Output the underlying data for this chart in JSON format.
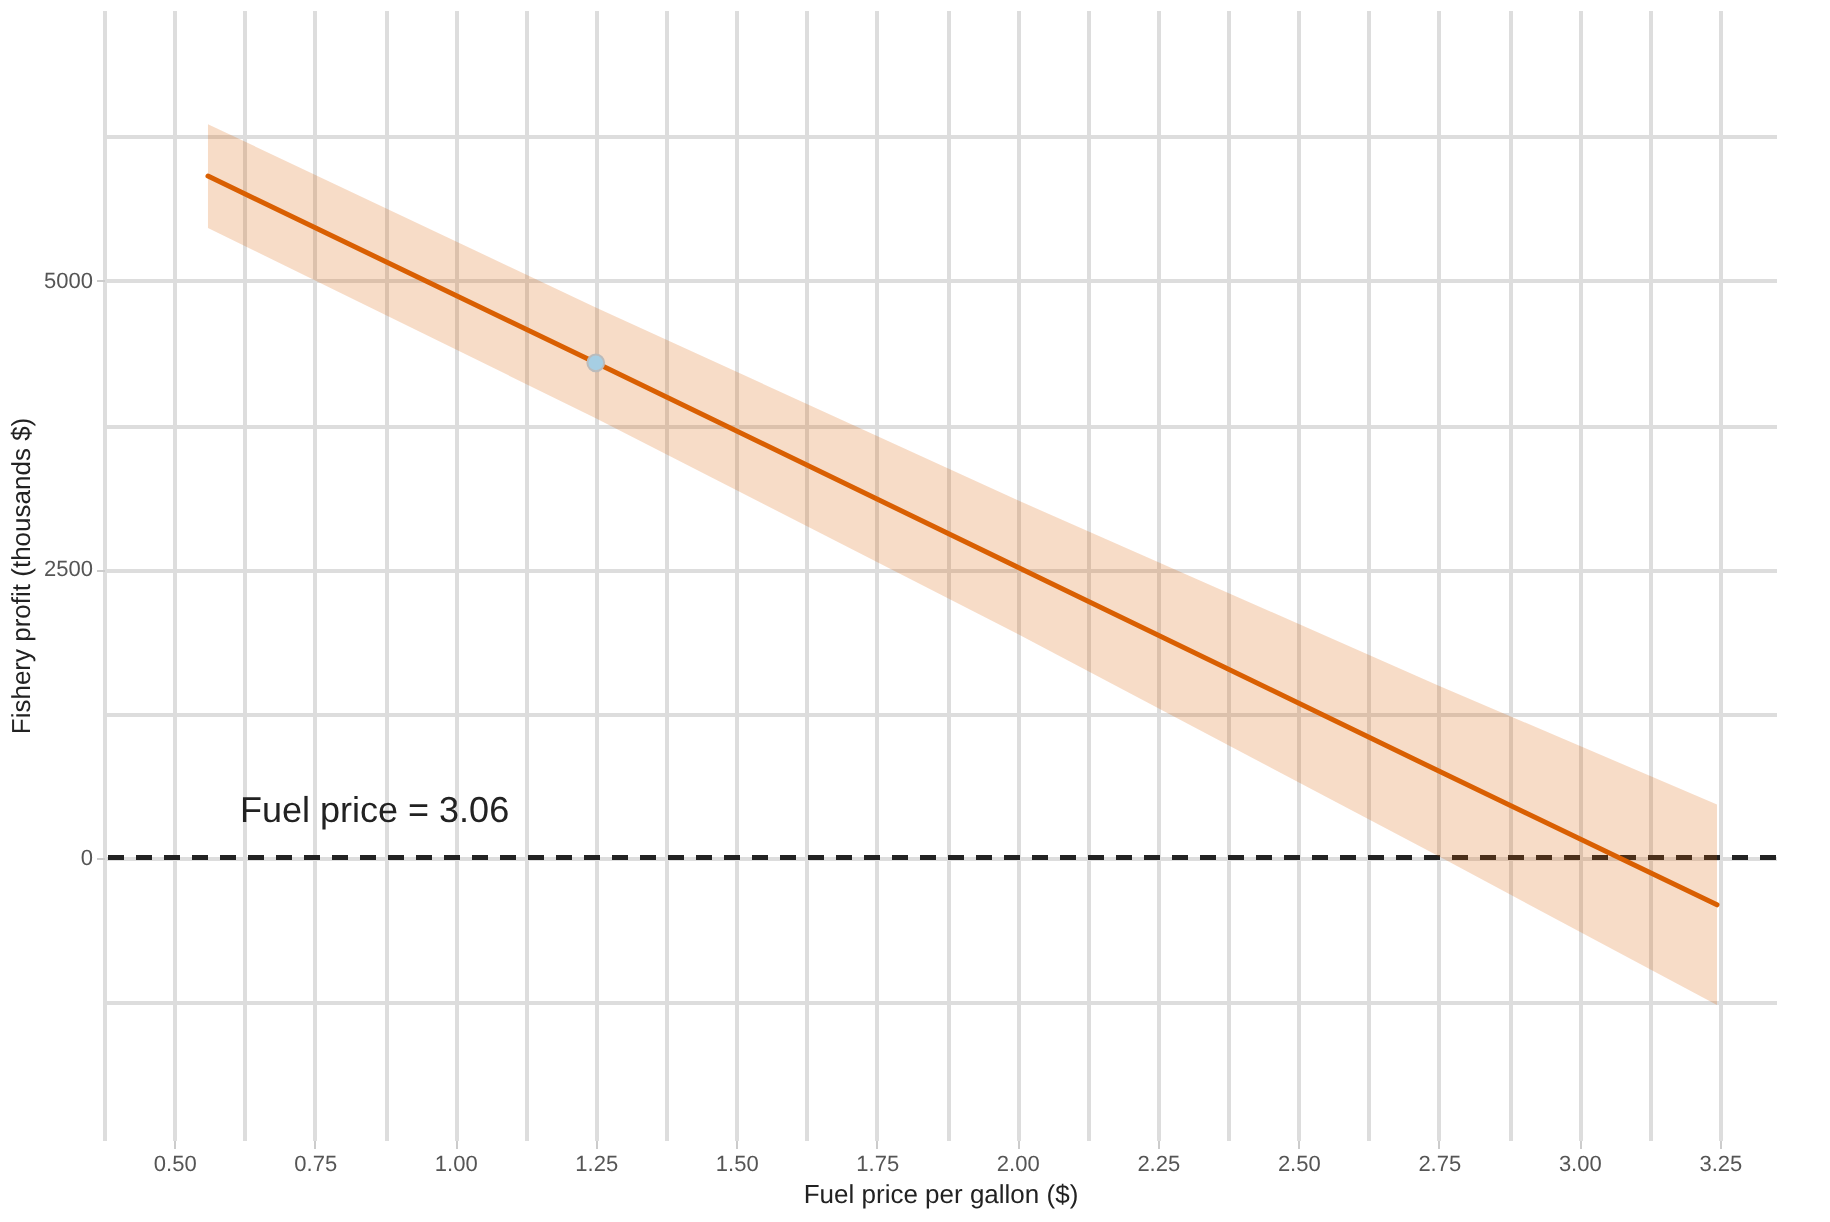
{
  "chart_data": {
    "type": "line",
    "xlabel": "Fuel price per gallon ($)",
    "ylabel": "Fishery profit (thousands $)",
    "xlim": [
      0.375,
      3.35
    ],
    "ylim": [
      -2450,
      7350
    ],
    "xticks": [
      {
        "value": 0.5,
        "label": "0.50"
      },
      0.75,
      {
        "value": 1,
        "label": "1.00"
      },
      1.25,
      {
        "value": 1.5,
        "label": "1.50"
      },
      1.75,
      {
        "value": 2,
        "label": "2.00"
      },
      2.25,
      {
        "value": 2.5,
        "label": "2.50"
      },
      2.75,
      {
        "value": 3,
        "label": "3.00"
      },
      3.25
    ],
    "yticks": [
      0,
      2500,
      5000
    ],
    "grid": true,
    "annotations": [
      "Fuel price = 3.06"
    ],
    "series": [
      {
        "color": "#d95f02",
        "x": [
          0.56,
          1.25,
          2.0,
          2.75,
          3.245
        ],
        "values": [
          5910,
          4290,
          2520,
          750,
          -410
        ],
        "lower": [
          5460,
          3810,
          1940,
          10,
          -1280
        ],
        "upper": [
          6360,
          4770,
          3100,
          1490,
          460
        ]
      },
      {
        "type": "scatter",
        "color": "#a6cee3",
        "marker": "circle",
        "x": [
          1.25
        ],
        "values": [
          4290
        ]
      }
    ],
    "ref_lines": [
      {
        "axis": "y",
        "value": 0,
        "color": "#222222",
        "line_style": "dashed"
      }
    ]
  }
}
